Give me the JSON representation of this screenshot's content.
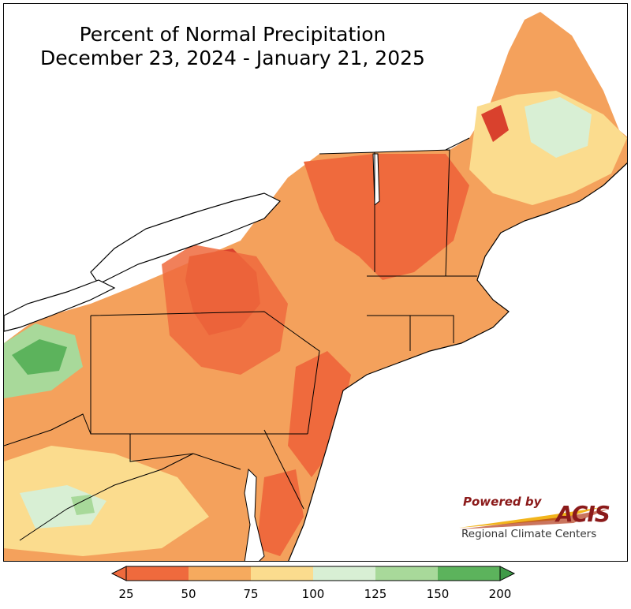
{
  "title_line1": "Percent of Normal Precipitation",
  "title_line2": "December 23, 2024 - January 21, 2025",
  "logo": {
    "powered_by": "Powered by",
    "acis": "ACIS",
    "regional_climate_centers": "Regional Climate Centers"
  },
  "legend": {
    "ticks": [
      "25",
      "50",
      "75",
      "100",
      "125",
      "150",
      "200"
    ],
    "colors": [
      "#ef6a3d",
      "#f6aa5e",
      "#fbdc8e",
      "#d8efd4",
      "#a8d99a",
      "#5cb35c"
    ],
    "under_color": "#ef6a3d",
    "over_color": "#3f9a48"
  },
  "palette": {
    "water": "#ffffff",
    "border": "#000000",
    "county_lines": "#8a7b6a"
  }
}
